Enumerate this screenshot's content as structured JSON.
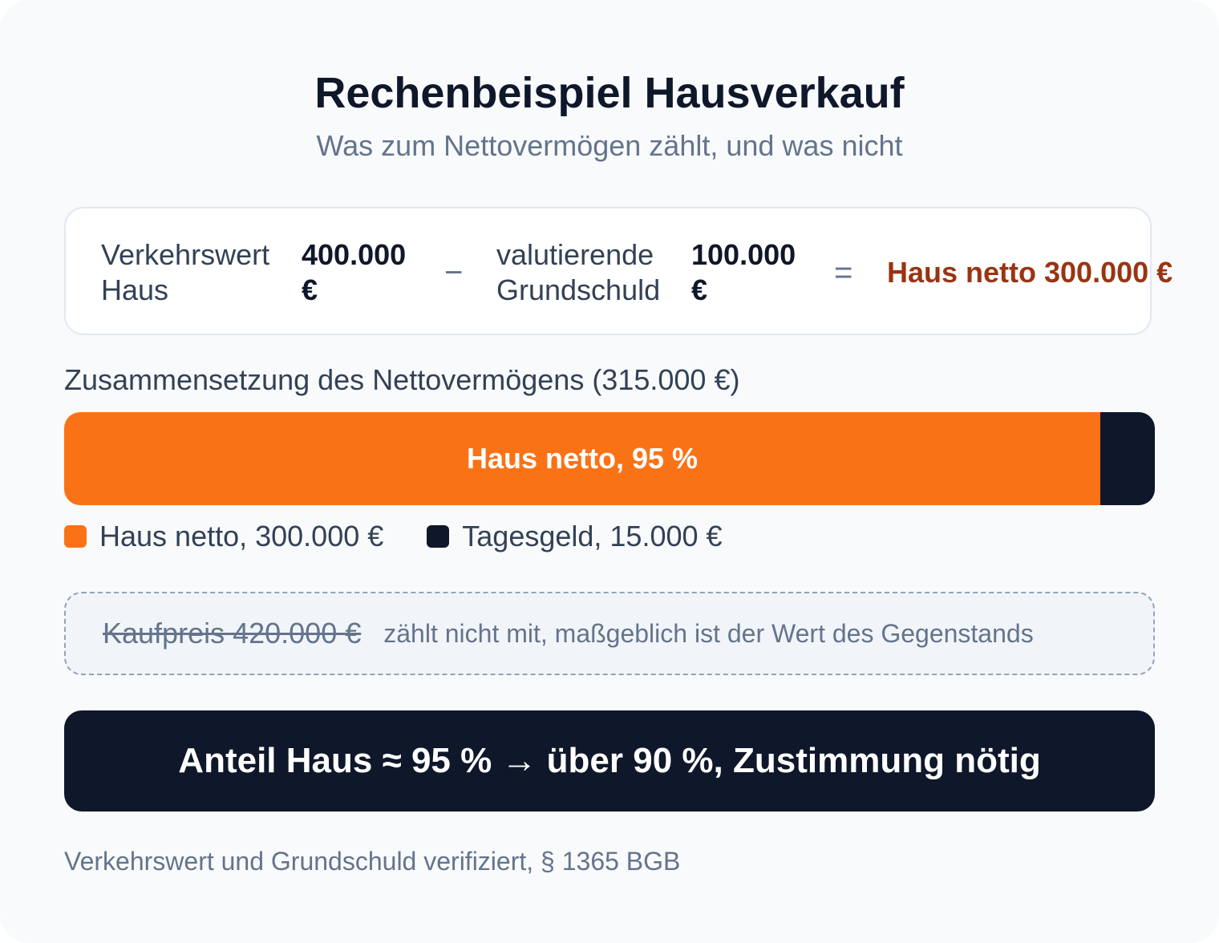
{
  "header": {
    "title": "Rechenbeispiel Hausverkauf",
    "subtitle": "Was zum Nettovermögen zählt, und was nicht"
  },
  "equation": {
    "market_value_label": "Verkehrswert Haus",
    "market_value": "400.000 €",
    "minus_operator": "−",
    "debt_label": "valutierende Grundschuld",
    "debt_value": "100.000 €",
    "equals_operator": "=",
    "result": "Haus netto 300.000 €"
  },
  "composition": {
    "label": "Zusammensetzung des Nettovermögens (315.000 €)",
    "house_fraction": 0.95,
    "house_bar_label": "Haus netto, 95 %",
    "legend": [
      {
        "label": "Haus netto, 300.000 €",
        "color": "#f97316"
      },
      {
        "label": "Tagesgeld, 15.000 €",
        "color": "#0f172a"
      }
    ]
  },
  "note": {
    "struck_text": "Kaufpreis 420.000 €",
    "explanation": "zählt nicht mit, maßgeblich ist der Wert des Gegenstands"
  },
  "verdict": {
    "text": "Anteil Haus ≈ 95 % → über 90 %, Zustimmung nötig"
  },
  "footer": {
    "text": "Verkehrswert und Grundschuld verifiziert, § 1365 BGB"
  },
  "colors": {
    "accent_orange": "#f97316",
    "result_text": "#9a3412",
    "dark": "#0f172a",
    "muted": "#64748b"
  }
}
